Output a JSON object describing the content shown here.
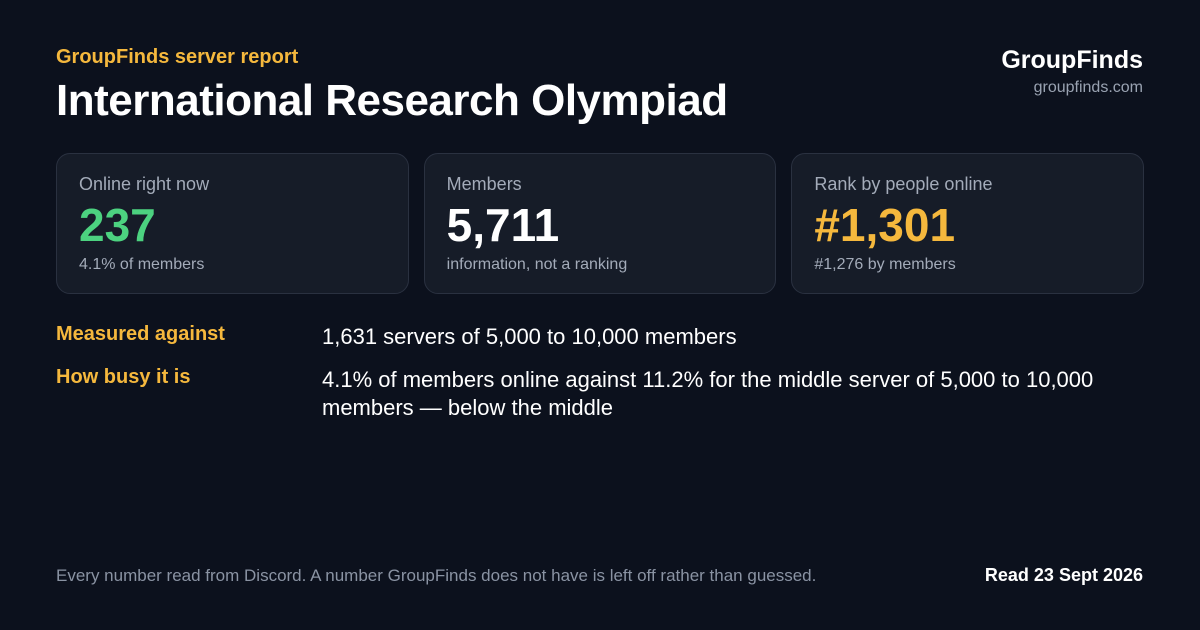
{
  "header": {
    "eyebrow": "GroupFinds server report",
    "title": "International Research Olympiad"
  },
  "brand": {
    "name": "GroupFinds",
    "url": "groupfinds.com"
  },
  "cards": [
    {
      "label": "Online right now",
      "value": "237",
      "note": "4.1% of members",
      "accent": "#4cd280"
    },
    {
      "label": "Members",
      "value": "5,711",
      "note": "information, not a ranking",
      "accent": "#ffffff"
    },
    {
      "label": "Rank by people online",
      "value": "#1,301",
      "note": "#1,276 by members",
      "accent": "#f5b83d"
    }
  ],
  "details": [
    {
      "label": "Measured against",
      "text": "1,631 servers of 5,000 to 10,000 members"
    },
    {
      "label": "How busy it is",
      "text": "4.1% of members online against 11.2% for the middle server of 5,000 to 10,000 members — below the middle"
    }
  ],
  "footer": {
    "note": "Every number read from Discord. A number GroupFinds does not have is left off rather than guessed.",
    "date": "Read 23 Sept 2026"
  },
  "colors": {
    "background": "#0c111d",
    "card_background": "#161c28",
    "accent_amber": "#f5b83d",
    "accent_green": "#4cd280"
  }
}
